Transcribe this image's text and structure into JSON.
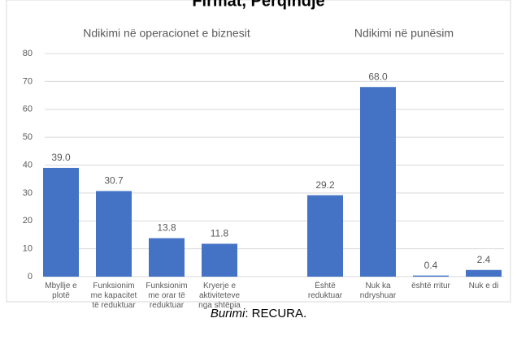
{
  "chart_data": {
    "type": "bar",
    "title": "Firmat, Përqindje",
    "annotations": [
      "Ndikimi në operacionet e biznesit",
      "Ndikimi në punësim"
    ],
    "source": {
      "label": "Burimi",
      "text": ": RECURA."
    },
    "categories": [
      "Mbyllje e\nplotë",
      "Funksionim\nme kapacitet\ntë reduktuar",
      "Funksionim\nme orar të\nreduktuar",
      "Kryerje e\naktiviteteve\nnga shtëpia",
      null,
      "Është\nreduktuar",
      "Nuk ka\nndryshuar",
      "është rritur",
      "Nuk e di"
    ],
    "values": [
      39.0,
      30.7,
      13.8,
      11.8,
      null,
      29.2,
      68.0,
      0.4,
      2.4
    ],
    "value_labels": [
      "39.0",
      "30.7",
      "13.8",
      "11.8",
      null,
      "29.2",
      "68.0",
      "0.4",
      "2.4"
    ],
    "color": "#4472c4",
    "ylim": [
      0,
      80
    ],
    "yticks": [
      0,
      10,
      20,
      30,
      40,
      50,
      60,
      70,
      80
    ],
    "grid": true
  }
}
